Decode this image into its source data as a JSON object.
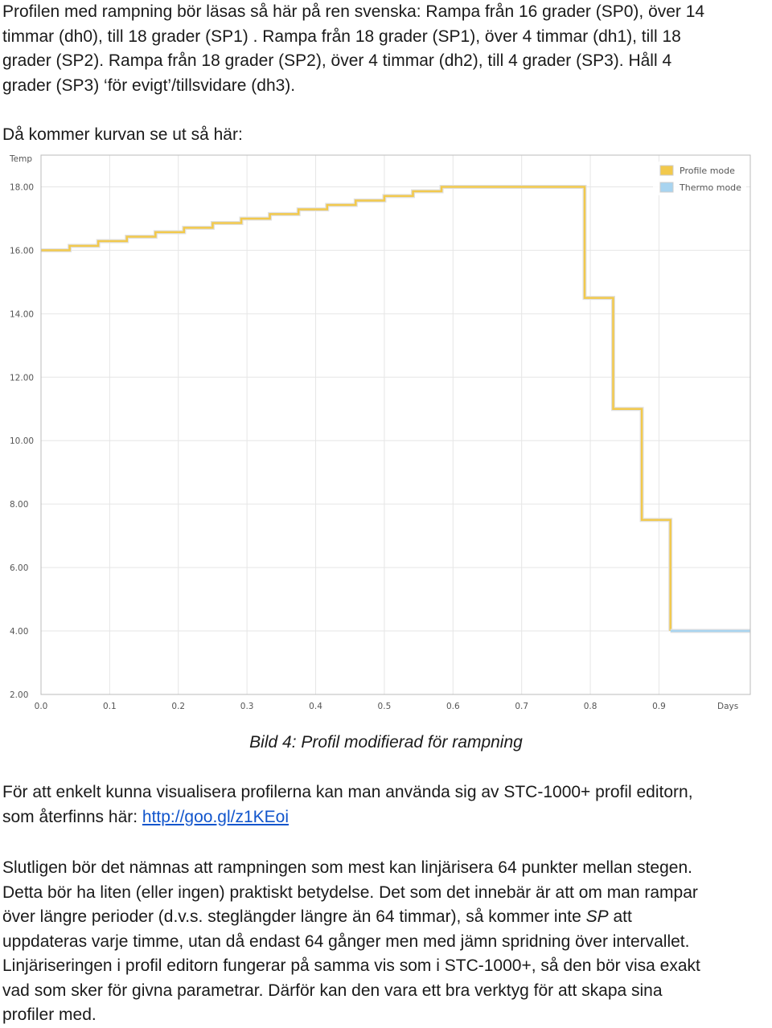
{
  "intro": {
    "line1": "Profilen med rampning bör läsas så här på ren svenska: Rampa från 16 grader (SP0), över 14",
    "line2": "timmar (dh0), till 18 grader (SP1) . Rampa från 18 grader (SP1),  över 4 timmar (dh1), till 18",
    "line3": "grader (SP2). Rampa från 18 grader (SP2), över 4 timmar (dh2), till 4 grader (SP3). Håll 4",
    "line4": "grader (SP3) ‘för evigt’/tillsvidare (dh3).",
    "lead": "Då kommer kurvan se ut så här:"
  },
  "chart_data": {
    "type": "line",
    "ylabel": "Temp",
    "xlabel": "Days",
    "xlim": [
      0.0,
      1.033
    ],
    "ylim": [
      2.0,
      19.0
    ],
    "x_ticks": [
      "0.0",
      "0.1",
      "0.2",
      "0.3",
      "0.4",
      "0.5",
      "0.6",
      "0.7",
      "0.8",
      "0.9"
    ],
    "y_ticks": [
      "2.00",
      "4.00",
      "6.00",
      "8.00",
      "10.00",
      "12.00",
      "14.00",
      "16.00",
      "18.00"
    ],
    "legend": {
      "placement": "top-right",
      "entries": [
        "Profile mode",
        "Thermo mode"
      ]
    },
    "grid": true,
    "series": [
      {
        "name": "Profile mode",
        "color": "#f2c94c",
        "x": [
          0.0,
          0.0417,
          0.0833,
          0.125,
          0.1667,
          0.2083,
          0.25,
          0.2917,
          0.3333,
          0.375,
          0.4167,
          0.4583,
          0.5,
          0.5417,
          0.5833,
          0.625,
          0.6667,
          0.7083,
          0.75,
          0.7917,
          0.8333,
          0.875,
          0.9167
        ],
        "y": [
          16.0,
          16.14,
          16.29,
          16.43,
          16.57,
          16.71,
          16.86,
          17.0,
          17.14,
          17.29,
          17.43,
          17.57,
          17.71,
          17.86,
          18.0,
          18.0,
          18.0,
          18.0,
          18.0,
          14.5,
          11.0,
          7.5,
          4.0
        ]
      },
      {
        "name": "Thermo mode",
        "color": "#a8d4f0",
        "x": [
          0.9167,
          1.033
        ],
        "y": [
          4.0,
          4.0
        ]
      }
    ]
  },
  "caption": "Bild 4: Profil modifierad för rampning",
  "para3": {
    "text1": "För att enkelt kunna visualisera profilerna kan man använda sig av STC-1000+ profil editorn,",
    "text2": "som återfinns här: ",
    "link": "http://goo.gl/z1KEoi"
  },
  "para4": {
    "line1": "Slutligen bör det nämnas att rampningen som mest kan linjärisera 64 punkter mellan stegen.",
    "line2": "Detta bör ha liten (eller ingen) praktiskt betydelse. Det som det innebär är att om man rampar",
    "line3": "över längre perioder (d.v.s. steglängder längre än 64 timmar), så kommer inte ",
    "line3_sp": "SP",
    "line3_end": " att",
    "line4": "uppdateras varje timme, utan då endast 64 gånger men med jämn spridning över intervallet.",
    "line5": "Linjäriseringen i profil editorn fungerar på samma vis som i STC-1000+, så den bör visa exakt",
    "line6": "vad som sker för givna parametrar. Därför kan den vara ett bra verktyg för att skapa sina",
    "line7": "profiler med."
  }
}
